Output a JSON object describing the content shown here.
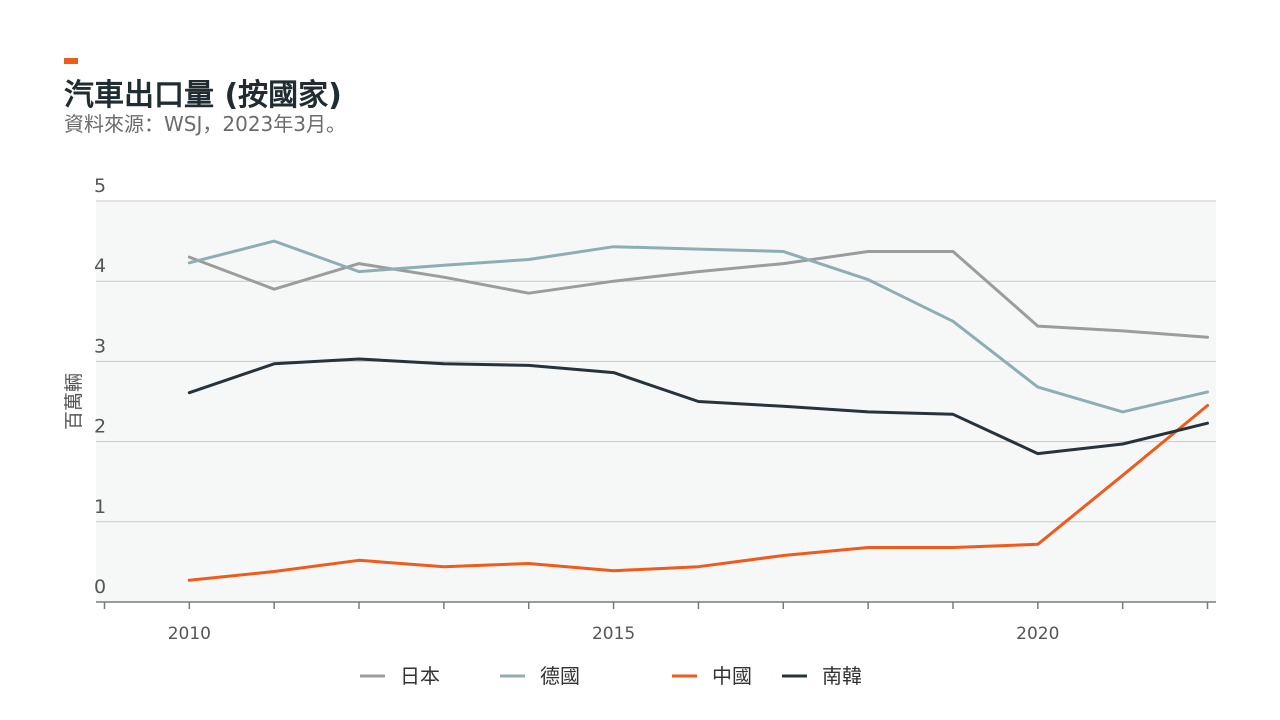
{
  "colors": {
    "accent": "#f05a1a",
    "japan": "#9c9c9c",
    "germany": "#8eaeb3",
    "china": "#f05a1a",
    "korea": "#27333a",
    "plot_bg": "#f6f8f7",
    "grid": "#c8c8c8",
    "axis_text": "#555555"
  },
  "chart_data": {
    "type": "line",
    "title": "汽車出口量 (按國家)",
    "subtitle": "資料來源：WSJ，2023年3月。",
    "xlabel": "",
    "ylabel": "百萬輛",
    "x": [
      2010,
      2011,
      2012,
      2013,
      2014,
      2015,
      2016,
      2017,
      2018,
      2019,
      2020,
      2021,
      2022
    ],
    "xlim": [
      2008.9,
      2022.1
    ],
    "ylim": [
      0,
      5
    ],
    "x_ticks": [
      2010,
      2015,
      2020
    ],
    "y_ticks": [
      0,
      1,
      2,
      3,
      4,
      5
    ],
    "grid": true,
    "legend_position": "bottom",
    "series": [
      {
        "name": "日本",
        "color_key": "japan",
        "values": [
          4.3,
          3.9,
          4.22,
          4.05,
          3.85,
          4.0,
          4.12,
          4.22,
          4.37,
          4.37,
          3.44,
          3.38,
          3.3
        ]
      },
      {
        "name": "德國",
        "color_key": "germany",
        "values": [
          4.23,
          4.5,
          4.12,
          4.2,
          4.27,
          4.43,
          4.4,
          4.37,
          4.02,
          3.5,
          2.68,
          2.37,
          2.62
        ]
      },
      {
        "name": "中國",
        "color_key": "china",
        "values": [
          0.27,
          0.38,
          0.52,
          0.44,
          0.48,
          0.39,
          0.44,
          0.58,
          0.68,
          0.68,
          0.72,
          1.58,
          2.45
        ]
      },
      {
        "name": "南韓",
        "color_key": "korea",
        "values": [
          2.61,
          2.97,
          3.03,
          2.97,
          2.95,
          2.86,
          2.5,
          2.44,
          2.37,
          2.34,
          1.85,
          1.97,
          2.23
        ]
      }
    ]
  }
}
